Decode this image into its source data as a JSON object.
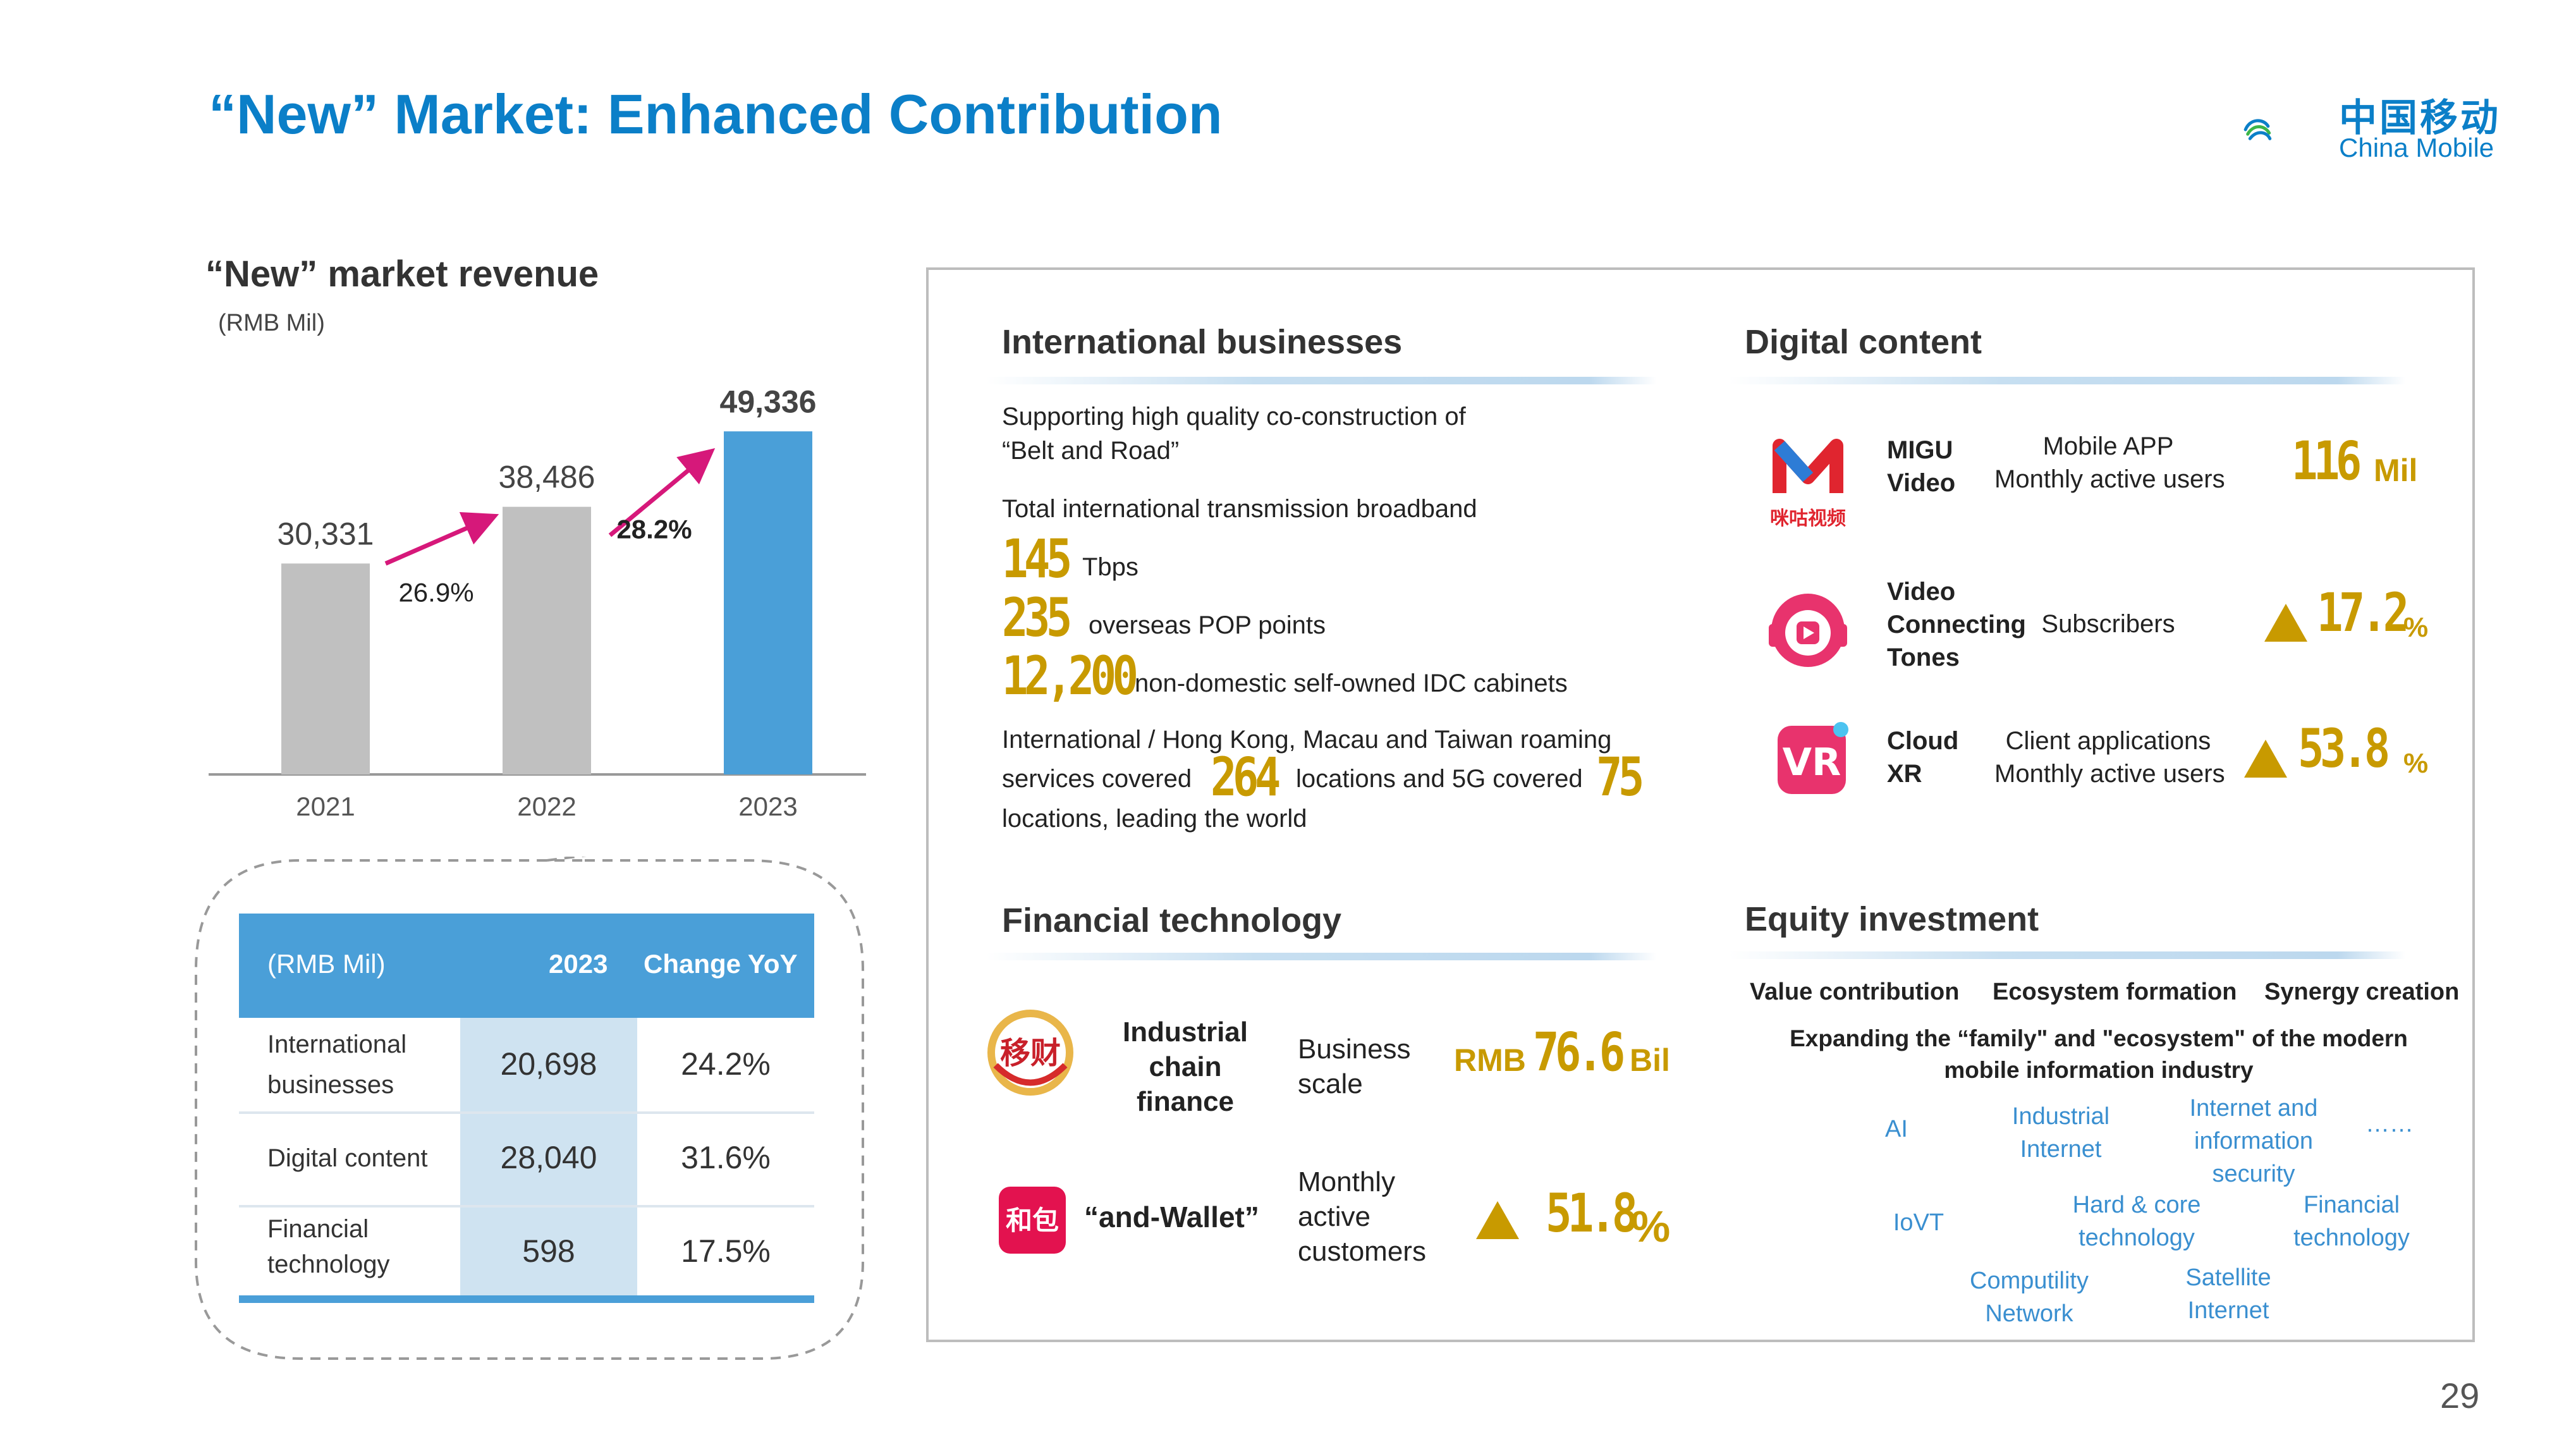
{
  "header": {
    "title": "“New” Market: Enhanced Contribution",
    "logo_cn": "中国移动",
    "logo_en": "China Mobile"
  },
  "left": {
    "section_title": "“New” market revenue",
    "unit": "(RMB Mil)",
    "chart_data": {
      "type": "bar",
      "categories": [
        "2021",
        "2022",
        "2023"
      ],
      "values": [
        30331,
        38486,
        49336
      ],
      "value_labels": [
        "30,331",
        "38,486",
        "49,336"
      ],
      "growth_labels": [
        "26.9%",
        "28.2%"
      ],
      "colors": [
        "#c0c0c0",
        "#c0c0c0",
        "#4a9fd8"
      ],
      "arrow_color": "#d6187a",
      "ylim": [
        0,
        55000
      ]
    },
    "table": {
      "headers": [
        "(RMB Mil)",
        "2023",
        "Change YoY"
      ],
      "rows": [
        {
          "label_l1": "International",
          "label_l2": "businesses",
          "value": "20,698",
          "change": "24.2%"
        },
        {
          "label_l1": "Digital content",
          "label_l2": "",
          "value": "28,040",
          "change": "31.6%"
        },
        {
          "label_l1": "Financial",
          "label_l2": "technology",
          "value": "598",
          "change": "17.5%"
        }
      ]
    }
  },
  "international": {
    "title": "International businesses",
    "line1": "Supporting high quality co-construction of",
    "line2": "“Belt and Road”",
    "broadband_label": "Total international transmission broadband",
    "broadband_value": "145",
    "broadband_unit": "Tbps",
    "pop_value": "235",
    "pop_label": "overseas POP points",
    "idc_value": "12,200",
    "idc_label": "non-domestic self-owned IDC cabinets",
    "roam_line1": "International / Hong Kong, Macau and Taiwan roaming",
    "roam_pre": "services covered",
    "roam_value": "264",
    "roam_mid": "locations and 5G covered",
    "roam_5g": "75",
    "roam_line3": "locations, leading the world"
  },
  "digital": {
    "title": "Digital content",
    "items": [
      {
        "name_l1": "MIGU",
        "name_l2": "Video",
        "name_l3": "",
        "metric_l1": "Mobile APP",
        "metric_l2": "Monthly active users",
        "value": "116",
        "unit": "Mil",
        "arrow": false,
        "icon_text": "咪咕视频"
      },
      {
        "name_l1": "Video",
        "name_l2": "Connecting",
        "name_l3": "Tones",
        "metric_l1": "Subscribers",
        "metric_l2": "",
        "value": "17.2",
        "unit": "%",
        "arrow": true
      },
      {
        "name_l1": "Cloud",
        "name_l2": "XR",
        "name_l3": "",
        "metric_l1": "Client applications",
        "metric_l2": "Monthly active users",
        "value": "53.8",
        "unit": "%",
        "arrow": true
      }
    ]
  },
  "fintech": {
    "title": "Financial technology",
    "item1_l1": "Industrial",
    "item1_l2": "chain",
    "item1_l3": "finance",
    "metric1_l1": "Business",
    "metric1_l2": "scale",
    "value1_pre": "RMB",
    "value1": "76.6",
    "value1_unit": "Bil",
    "item2": "“and-Wallet”",
    "metric2_l1": "Monthly",
    "metric2_l2": "active",
    "metric2_l3": "customers",
    "value2": "51.8",
    "value2_unit": "%",
    "icon1_text": "移财",
    "icon2_text": "和包"
  },
  "equity": {
    "title": "Equity investment",
    "pillars": [
      "Value contribution",
      "Ecosystem formation",
      "Synergy creation"
    ],
    "tagline_l1": "Expanding the “family\" and \"ecosystem\" of the modern",
    "tagline_l2": "mobile information industry",
    "areas": {
      "ai": "AI",
      "ind_l1": "Industrial",
      "ind_l2": "Internet",
      "isec_l1": "Internet and",
      "isec_l2": "information",
      "isec_l3": "security",
      "more": "……",
      "iovt": "IoVT",
      "chip_l1": "Hard & core",
      "chip_l2": "technology",
      "fin_l1": "Financial",
      "fin_l2": "technology",
      "comp_l1": "Computility",
      "comp_l2": "Network",
      "sat_l1": "Satellite",
      "sat_l2": "Internet"
    }
  },
  "page_number": "29"
}
